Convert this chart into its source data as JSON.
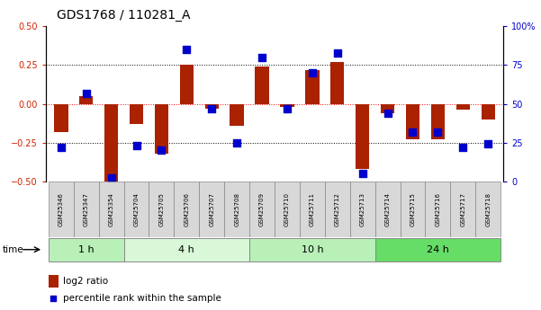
{
  "title": "GDS1768 / 110281_A",
  "samples": [
    "GSM25346",
    "GSM25347",
    "GSM25354",
    "GSM25704",
    "GSM25705",
    "GSM25706",
    "GSM25707",
    "GSM25708",
    "GSM25709",
    "GSM25710",
    "GSM25711",
    "GSM25712",
    "GSM25713",
    "GSM25714",
    "GSM25715",
    "GSM25716",
    "GSM25717",
    "GSM25718"
  ],
  "log2_ratio": [
    -0.18,
    0.05,
    -0.5,
    -0.13,
    -0.32,
    0.25,
    -0.03,
    -0.14,
    0.24,
    -0.02,
    0.22,
    0.27,
    -0.42,
    -0.06,
    -0.23,
    -0.23,
    -0.04,
    -0.1
  ],
  "percentile_rank": [
    22,
    57,
    2,
    23,
    20,
    85,
    47,
    25,
    80,
    47,
    70,
    83,
    5,
    44,
    32,
    32,
    22,
    24
  ],
  "groups": [
    {
      "label": "1 h",
      "start": 0,
      "end": 3,
      "color": "#b8f0b8"
    },
    {
      "label": "4 h",
      "start": 3,
      "end": 8,
      "color": "#d8f8d8"
    },
    {
      "label": "10 h",
      "start": 8,
      "end": 13,
      "color": "#b8f0b8"
    },
    {
      "label": "24 h",
      "start": 13,
      "end": 18,
      "color": "#66dd66"
    }
  ],
  "bar_color": "#aa2200",
  "dot_color": "#0000cc",
  "ylim_left": [
    -0.5,
    0.5
  ],
  "ylim_right": [
    0,
    100
  ],
  "yticks_left": [
    -0.5,
    -0.25,
    0,
    0.25,
    0.5
  ],
  "yticks_right": [
    0,
    25,
    50,
    75,
    100
  ],
  "hlines_dotted": [
    -0.25,
    0.25
  ],
  "hline_red": 0,
  "bar_width": 0.55,
  "dot_size": 28,
  "title_fontsize": 10,
  "tick_fontsize": 7,
  "sample_fontsize": 5,
  "group_fontsize": 8,
  "legend_fontsize": 7.5
}
